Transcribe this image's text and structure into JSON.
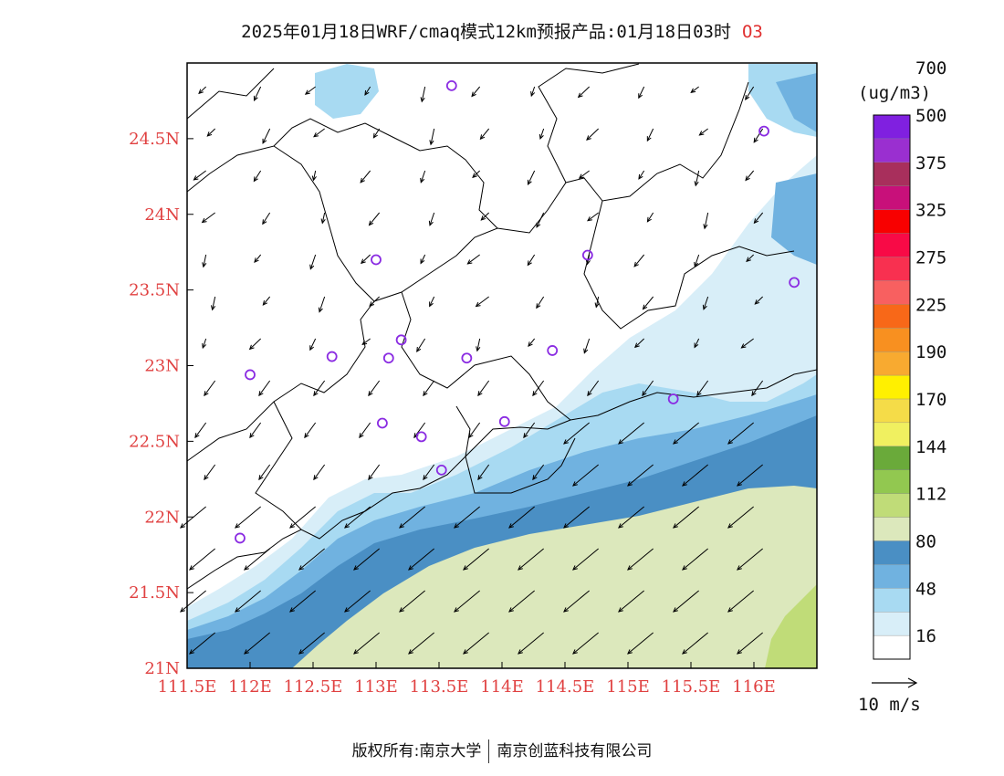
{
  "title": {
    "text": "2025年01月18日WRF/cmaq模式12km预报产品:01月18日03时",
    "species": "O3"
  },
  "map": {
    "lon_range": [
      111.5,
      116.5
    ],
    "lat_range": [
      21.0,
      25.0
    ],
    "x_tick_labels": [
      "111.5E",
      "112E",
      "112.5E",
      "113E",
      "113.5E",
      "114E",
      "114.5E",
      "115E",
      "115.5E",
      "116E"
    ],
    "x_tick_values": [
      111.5,
      112.0,
      112.5,
      113.0,
      113.5,
      114.0,
      114.5,
      115.0,
      115.5,
      116.0
    ],
    "y_tick_labels": [
      "21N",
      "21.5N",
      "22N",
      "22.5N",
      "23N",
      "23.5N",
      "24N",
      "24.5N"
    ],
    "y_tick_values": [
      21.0,
      21.5,
      22.0,
      22.5,
      23.0,
      23.5,
      24.0,
      24.5
    ],
    "tick_label_color": "#e04040",
    "station_marker_color": "#8a2be2",
    "stations": [
      {
        "lon": 113.6,
        "lat": 24.85
      },
      {
        "lon": 116.08,
        "lat": 24.55
      },
      {
        "lon": 113.0,
        "lat": 23.7
      },
      {
        "lon": 114.68,
        "lat": 23.73
      },
      {
        "lon": 116.32,
        "lat": 23.55
      },
      {
        "lon": 113.2,
        "lat": 23.17
      },
      {
        "lon": 112.65,
        "lat": 23.06
      },
      {
        "lon": 113.1,
        "lat": 23.05
      },
      {
        "lon": 113.72,
        "lat": 23.05
      },
      {
        "lon": 114.4,
        "lat": 23.1
      },
      {
        "lon": 112.0,
        "lat": 22.94
      },
      {
        "lon": 113.05,
        "lat": 22.62
      },
      {
        "lon": 113.36,
        "lat": 22.53
      },
      {
        "lon": 114.02,
        "lat": 22.63
      },
      {
        "lon": 115.36,
        "lat": 22.78
      },
      {
        "lon": 113.52,
        "lat": 22.31
      },
      {
        "lon": 111.92,
        "lat": 21.86
      }
    ]
  },
  "colorbar": {
    "unit_label": "(ug/m3)",
    "colors": [
      "#ffffff",
      "#d8eef8",
      "#a8daf2",
      "#70b2e0",
      "#4a8fc4",
      "#dce8bc",
      "#c0dc78",
      "#92c850",
      "#6aaa3a",
      "#f0f060",
      "#f5dc48",
      "#fff000",
      "#f8aa30",
      "#f89020",
      "#f86818",
      "#f86060",
      "#f83050",
      "#f80a46",
      "#f80000",
      "#c8107a",
      "#a82f5c",
      "#9a2fd0",
      "#8020e0"
    ],
    "labels": [
      "16",
      "48",
      "80",
      "112",
      "144",
      "170",
      "190",
      "225",
      "275",
      "325",
      "375",
      "500",
      "700"
    ]
  },
  "wind_legend": {
    "label": "10 m/s"
  },
  "footer": {
    "left": "版权所有:南京大学",
    "right": "南京创蓝科技有限公司"
  }
}
